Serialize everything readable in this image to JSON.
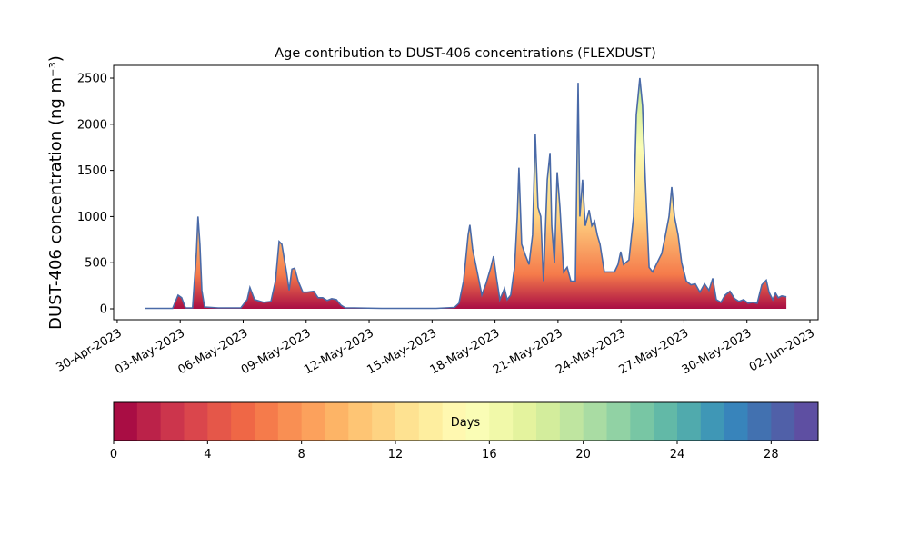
{
  "chart_data": {
    "type": "area",
    "title": "Age contribution to DUST-406 concentrations (FLEXDUST)",
    "ylabel": "DUST-406 concentration (ng m⁻³)",
    "x": [
      1.34,
      2.64,
      2.9,
      3.07,
      3.25,
      3.59,
      3.77,
      3.85,
      3.94,
      4.03,
      4.16,
      4.81,
      5.89,
      6.19,
      6.32,
      6.54,
      6.97,
      7.32,
      7.54,
      7.71,
      7.84,
      8.06,
      8.19,
      8.32,
      8.45,
      8.62,
      8.84,
      9.05,
      9.36,
      9.57,
      9.79,
      10.0,
      10.22,
      10.44,
      10.65,
      10.87,
      11.3,
      12.6,
      14.34,
      15.2,
      16.07,
      16.28,
      16.5,
      16.72,
      16.8,
      16.93,
      17.15,
      17.37,
      17.58,
      17.8,
      17.93,
      18.06,
      18.23,
      18.45,
      18.58,
      18.75,
      18.93,
      19.06,
      19.14,
      19.27,
      19.45,
      19.62,
      19.79,
      19.92,
      20.05,
      20.18,
      20.31,
      20.49,
      20.62,
      20.7,
      20.83,
      20.96,
      21.09,
      21.27,
      21.44,
      21.61,
      21.83,
      21.96,
      22.04,
      22.17,
      22.3,
      22.48,
      22.61,
      22.74,
      22.87,
      23.0,
      23.21,
      23.43,
      23.69,
      23.86,
      23.99,
      24.12,
      24.38,
      24.6,
      24.73,
      24.9,
      25.03,
      25.16,
      25.34,
      25.51,
      25.68,
      25.94,
      26.12,
      26.29,
      26.42,
      26.55,
      26.72,
      26.89,
      27.11,
      27.33,
      27.54,
      27.76,
      27.98,
      28.19,
      28.37,
      28.54,
      28.76,
      28.97,
      29.19,
      29.41,
      29.62,
      29.84,
      30.06,
      30.27,
      30.49,
      30.71,
      30.92,
      31.05,
      31.23,
      31.36,
      31.49,
      31.66,
      31.88
    ],
    "values": [
      5,
      5,
      148,
      120,
      10,
      10,
      600,
      1000,
      700,
      200,
      20,
      10,
      10,
      100,
      230,
      100,
      70,
      80,
      300,
      730,
      700,
      400,
      200,
      430,
      440,
      300,
      180,
      180,
      190,
      120,
      120,
      90,
      110,
      100,
      40,
      10,
      10,
      5,
      5,
      5,
      15,
      60,
      300,
      800,
      910,
      650,
      400,
      150,
      280,
      450,
      570,
      350,
      100,
      220,
      100,
      150,
      450,
      1000,
      1530,
      700,
      580,
      480,
      800,
      1890,
      1100,
      1000,
      300,
      1400,
      1690,
      900,
      500,
      1480,
      1100,
      400,
      450,
      300,
      300,
      2450,
      1000,
      1400,
      900,
      1070,
      900,
      950,
      800,
      700,
      400,
      400,
      400,
      480,
      620,
      480,
      530,
      1000,
      2100,
      2500,
      2200,
      1400,
      450,
      400,
      480,
      600,
      800,
      1000,
      1320,
      1000,
      800,
      500,
      300,
      260,
      270,
      180,
      270,
      200,
      330,
      100,
      70,
      150,
      190,
      110,
      80,
      100,
      60,
      70,
      60,
      260,
      310,
      180,
      100,
      170,
      120,
      140,
      130
    ],
    "line_color": "#4a6aa8",
    "xlim": [
      -0.17,
      33.39
    ],
    "xticks": [
      {
        "value": 0,
        "label": "30-Apr-2023"
      },
      {
        "value": 3,
        "label": "03-May-2023"
      },
      {
        "value": 6,
        "label": "06-May-2023"
      },
      {
        "value": 9,
        "label": "09-May-2023"
      },
      {
        "value": 12,
        "label": "12-May-2023"
      },
      {
        "value": 15,
        "label": "15-May-2023"
      },
      {
        "value": 18,
        "label": "18-May-2023"
      },
      {
        "value": 21,
        "label": "21-May-2023"
      },
      {
        "value": 24,
        "label": "24-May-2023"
      },
      {
        "value": 27,
        "label": "27-May-2023"
      },
      {
        "value": 30,
        "label": "30-May-2023"
      },
      {
        "value": 33,
        "label": "02-Jun-2023"
      }
    ],
    "ylim": [
      -118,
      2638
    ],
    "yticks": [
      0,
      500,
      1000,
      1500,
      2000,
      2500
    ],
    "colorbar": {
      "label": "Days",
      "lim": [
        0,
        30
      ],
      "ticks": [
        0,
        4,
        8,
        12,
        16,
        20,
        24,
        28
      ],
      "colors": [
        "#a90d44",
        "#bb2249",
        "#cc354c",
        "#da464c",
        "#e55749",
        "#ef6746",
        "#f57b4b",
        "#f98f53",
        "#fca15c",
        "#fdb466",
        "#fec574",
        "#fed382",
        "#fee291",
        "#feee9f",
        "#fff8b0",
        "#fafdb5",
        "#f1f9a9",
        "#e4f39e",
        "#d3ed9c",
        "#bfe5a0",
        "#a9dca3",
        "#91d2a4",
        "#78c6a4",
        "#62b9a7",
        "#50aaad",
        "#3f97b6",
        "#3884bb",
        "#4271b0",
        "#5060a8",
        "#5e4fa2"
      ]
    }
  }
}
